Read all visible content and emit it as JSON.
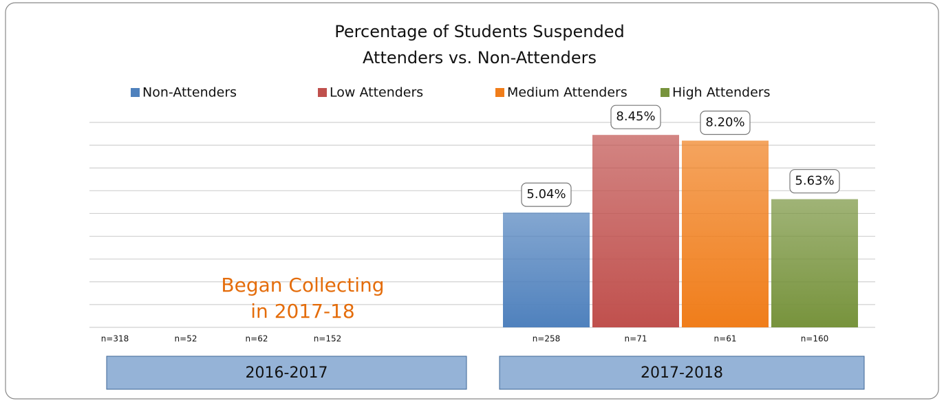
{
  "chart_data": {
    "type": "bar",
    "title": "Percentage of Students Suspended",
    "subtitle": "Attenders vs. Non-Attenders",
    "categories": [
      "2016-2017",
      "2017-2018"
    ],
    "series": [
      {
        "name": "Non-Attenders",
        "color": "#4f81bd",
        "values": [
          null,
          5.04
        ],
        "value_labels": [
          null,
          "5.04%"
        ],
        "n_labels": [
          "n=318",
          "n=258"
        ]
      },
      {
        "name": "Low Attenders",
        "color": "#c0504d",
        "values": [
          null,
          8.45
        ],
        "value_labels": [
          null,
          "8.45%"
        ],
        "n_labels": [
          "n=52",
          "n=71"
        ]
      },
      {
        "name": "Medium Attenders",
        "color": "#f07d1a",
        "values": [
          null,
          8.2
        ],
        "value_labels": [
          null,
          "8.20%"
        ],
        "n_labels": [
          "n=62",
          "n=61"
        ]
      },
      {
        "name": "High Attenders",
        "color": "#77933c",
        "values": [
          null,
          5.63
        ],
        "value_labels": [
          null,
          "5.63%"
        ],
        "n_labels": [
          "n=152",
          "n=160"
        ]
      }
    ],
    "annotation": "Began Collecting\nin 2017-18",
    "ylim": [
      0,
      9
    ],
    "yticks": [
      0,
      1,
      2,
      3,
      4,
      5,
      6,
      7,
      8,
      9
    ],
    "grid": true
  }
}
